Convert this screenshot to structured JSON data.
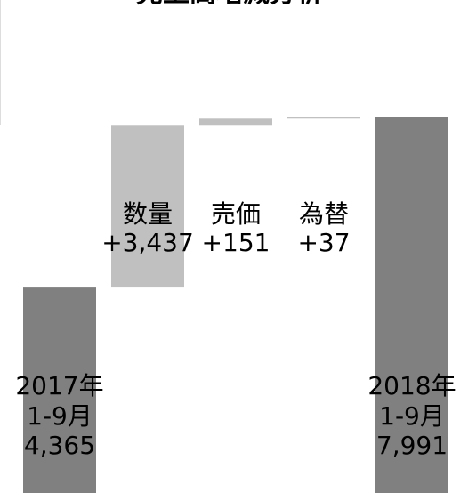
{
  "chart_data": {
    "type": "waterfall",
    "title": "売上高増減分析",
    "categories": [
      [
        "2017年",
        "1-9月"
      ],
      [
        "数量"
      ],
      [
        "売価"
      ],
      [
        "為替"
      ],
      [
        "2018年",
        "1-9月"
      ]
    ],
    "values": [
      4365,
      3437,
      151,
      37,
      7991
    ],
    "value_labels": [
      "4,365",
      "+3,437",
      "+151",
      "+37",
      "7,991"
    ],
    "is_total": [
      true,
      false,
      false,
      false,
      true
    ],
    "total_color": "#808080",
    "delta_color": "#c0c0c0",
    "ylim": [
      0,
      10000
    ]
  }
}
